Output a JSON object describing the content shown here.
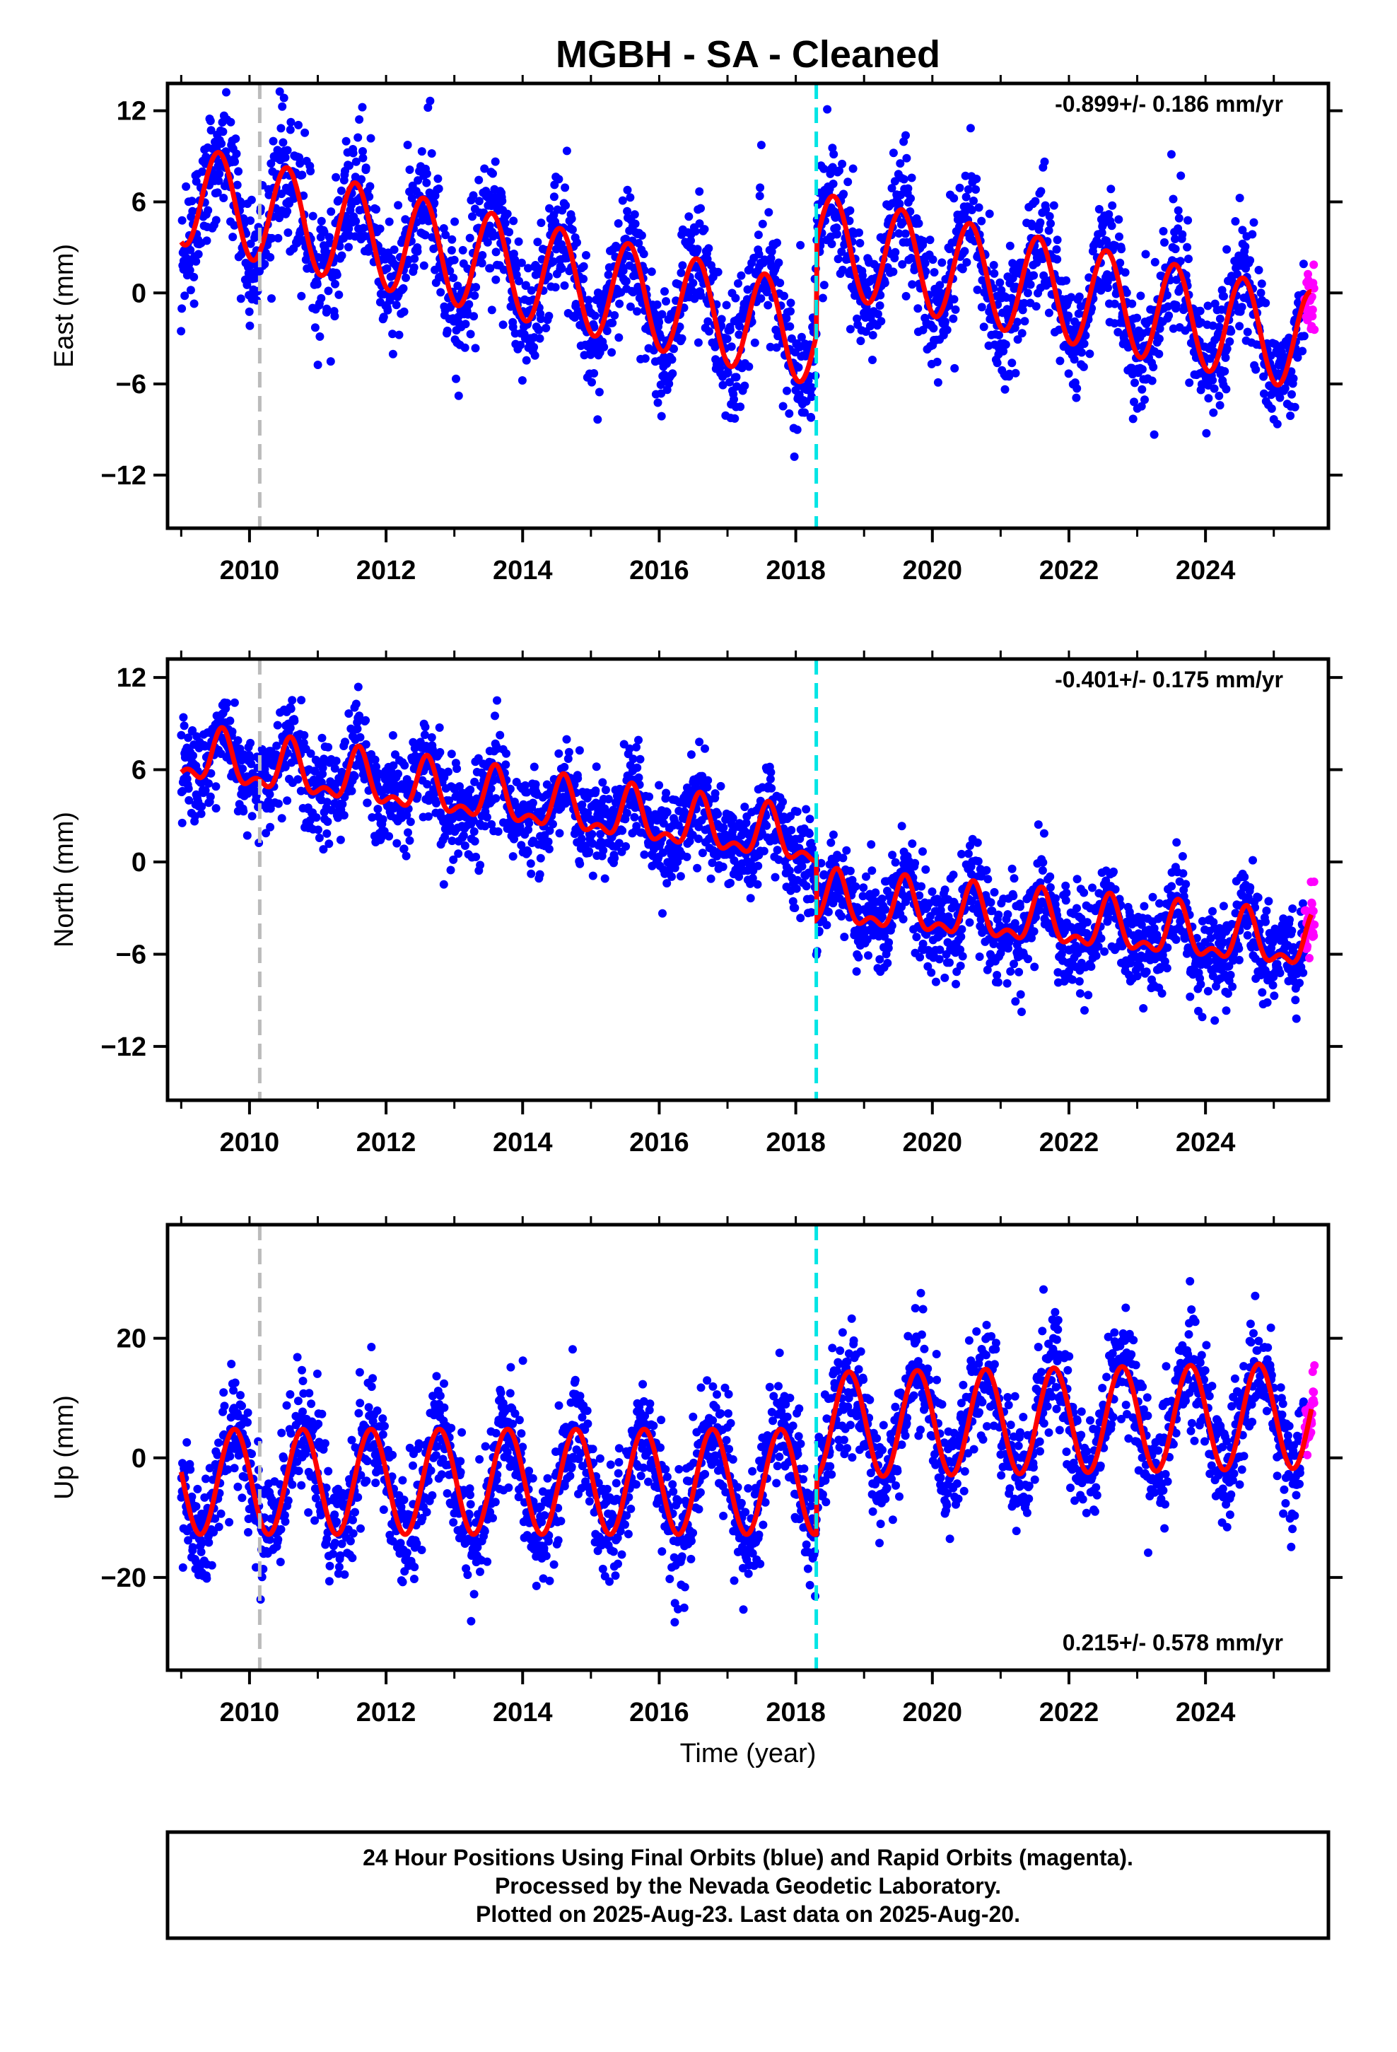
{
  "chart_data": {
    "type": "scatter",
    "title": "MGBH  - SA - Cleaned",
    "xlabel": "Time (year)",
    "xlim": [
      2008.8,
      2025.8
    ],
    "xticks": [
      2010,
      2012,
      2014,
      2016,
      2018,
      2020,
      2022,
      2024
    ],
    "vlines": [
      {
        "x": 2010.15,
        "color": "#bbbbbb",
        "style": "dashed"
      },
      {
        "x": 2018.3,
        "color": "#00e5e5",
        "style": "dashed"
      }
    ],
    "colors": {
      "final": "#0000ff",
      "rapid": "#ff00ff",
      "model": "#ff0000"
    },
    "panels": [
      {
        "component": "east",
        "ylabel": "East (mm)",
        "ylim": [
          -15.5,
          13.8
        ],
        "yticks": [
          12,
          6,
          0,
          -6,
          -12
        ],
        "rate_text": "-0.899+/- 0.186 mm/yr",
        "rate_position": "top-right",
        "model": {
          "segments": [
            {
              "x_start": 2009.0,
              "x_end": 2018.3,
              "offset": 6.5,
              "rate": -1.0
            },
            {
              "x_start": 2018.3,
              "x_end": 2025.55,
              "offset": 3.3,
              "rate": -0.899
            }
          ],
          "annual_amplitude": 3.3,
          "annual_phase_peak": 0.55
        },
        "scatter_noise": 2.4,
        "final_orbits_range": [
          2009.0,
          2025.45
        ],
        "rapid_orbits_range": [
          2025.45,
          2025.6
        ]
      },
      {
        "component": "north",
        "ylabel": "North (mm)",
        "ylim": [
          -15.5,
          13.2
        ],
        "yticks": [
          12,
          6,
          0,
          -6,
          -12
        ],
        "rate_text": "-0.401+/- 0.175 mm/yr",
        "rate_position": "top-right",
        "model": {
          "segments": [
            {
              "x_start": 2009.0,
              "x_end": 2018.3,
              "offset": 6.8,
              "rate": -0.6
            },
            {
              "x_start": 2018.3,
              "x_end": 2025.55,
              "offset": -2.6,
              "rate": -0.401
            }
          ],
          "annual_amplitude": 1.5,
          "semiannual_amplitude": 0.8,
          "annual_phase_peak": 0.6
        },
        "scatter_noise": 1.8,
        "final_orbits_range": [
          2009.0,
          2025.45
        ],
        "rapid_orbits_range": [
          2025.45,
          2025.6
        ]
      },
      {
        "component": "up",
        "ylabel": "Up (mm)",
        "ylim": [
          -35.5,
          39.0
        ],
        "yticks": [
          20,
          0,
          -20
        ],
        "rate_text": "0.215+/- 0.578 mm/yr",
        "rate_position": "bottom-right",
        "model": {
          "segments": [
            {
              "x_start": 2009.0,
              "x_end": 2018.3,
              "offset": -4.0,
              "rate": 0.0
            },
            {
              "x_start": 2018.3,
              "x_end": 2025.55,
              "offset": 5.5,
              "rate": 0.215
            }
          ],
          "annual_amplitude": 8.8,
          "annual_phase_peak": 0.78
        },
        "scatter_noise": 5.5,
        "final_orbits_range": [
          2009.0,
          2025.45
        ],
        "rapid_orbits_range": [
          2025.45,
          2025.6
        ]
      }
    ]
  },
  "footer": {
    "line1": "24 Hour Positions Using Final Orbits (blue) and Rapid Orbits (magenta).",
    "line2": "Processed by the Nevada Geodetic Laboratory.",
    "line3": "Plotted on 2025-Aug-23. Last data on 2025-Aug-20."
  }
}
